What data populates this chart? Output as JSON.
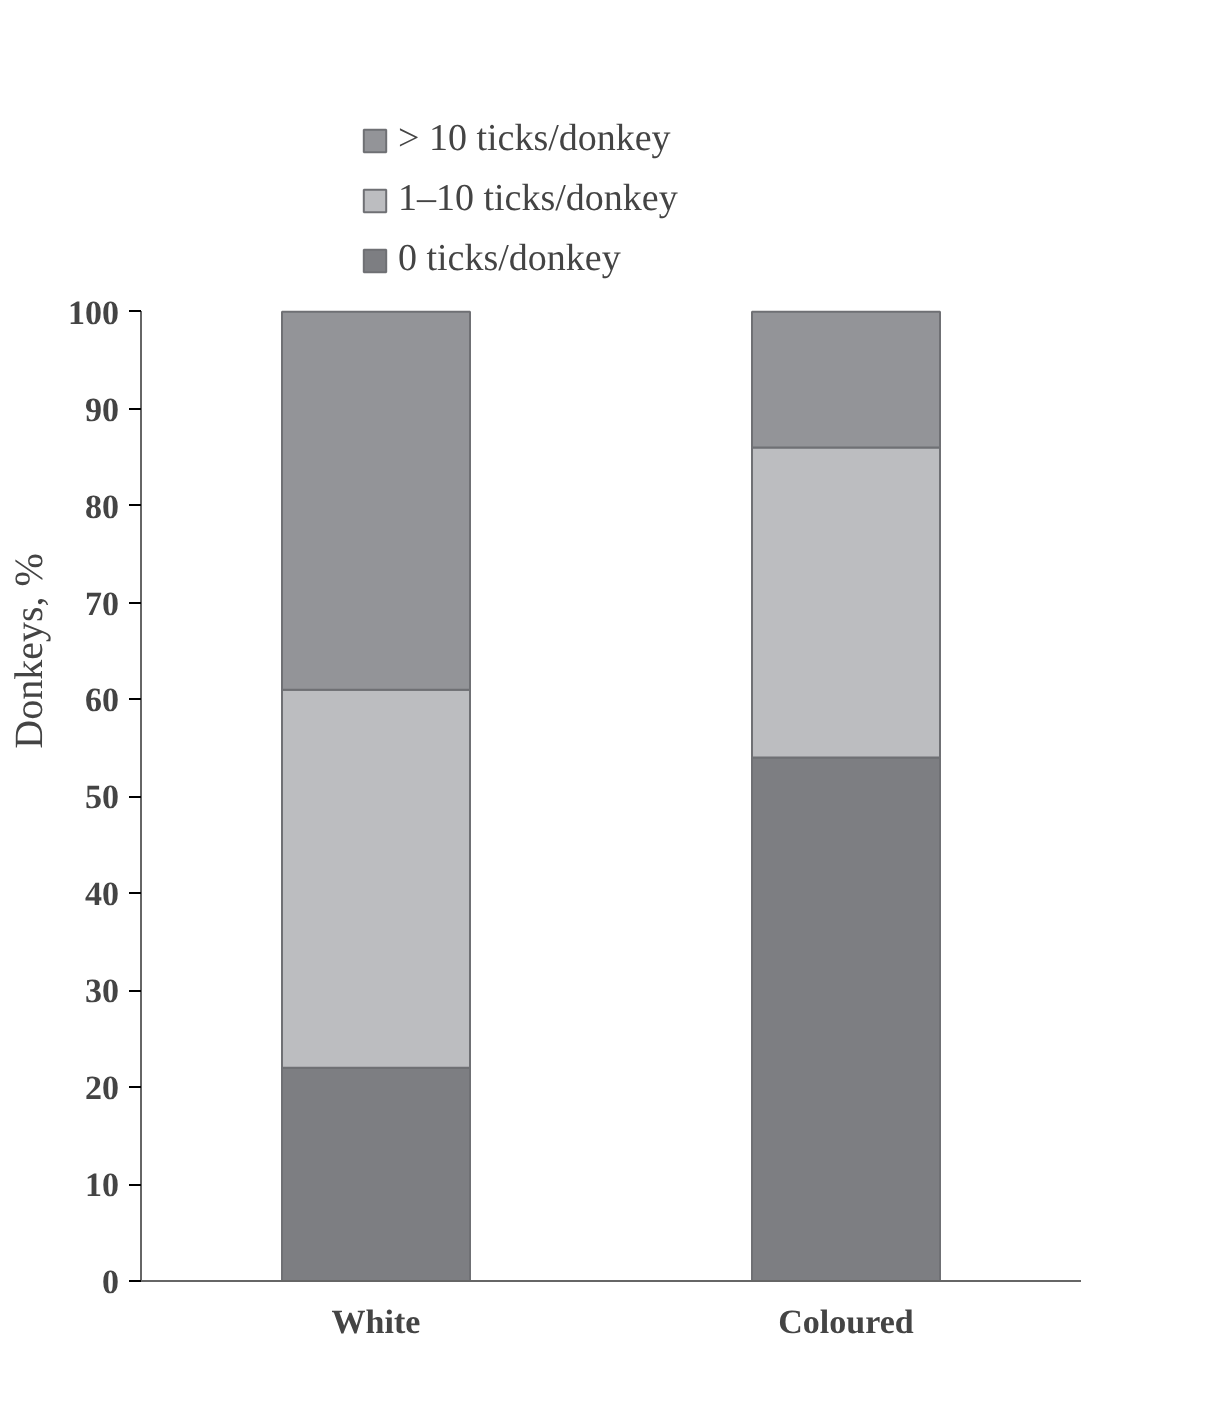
{
  "chart_data": {
    "type": "bar",
    "stacked": true,
    "ylabel": "Donkeys, %",
    "categories": [
      "White",
      "Coloured"
    ],
    "series": [
      {
        "name": "0 ticks/donkey",
        "color": "#7d7e82",
        "values": [
          22,
          54
        ]
      },
      {
        "name": "1–10 ticks/donkey",
        "color": "#bcbdc0",
        "values": [
          39,
          32
        ]
      },
      {
        "name": "> 10 ticks/donkey",
        "color": "#939498",
        "values": [
          39,
          14
        ]
      }
    ],
    "ylim": [
      0,
      100
    ],
    "yticks": [
      0,
      10,
      20,
      30,
      40,
      50,
      60,
      70,
      80,
      90,
      100
    ],
    "legend": "top",
    "grid": false
  }
}
